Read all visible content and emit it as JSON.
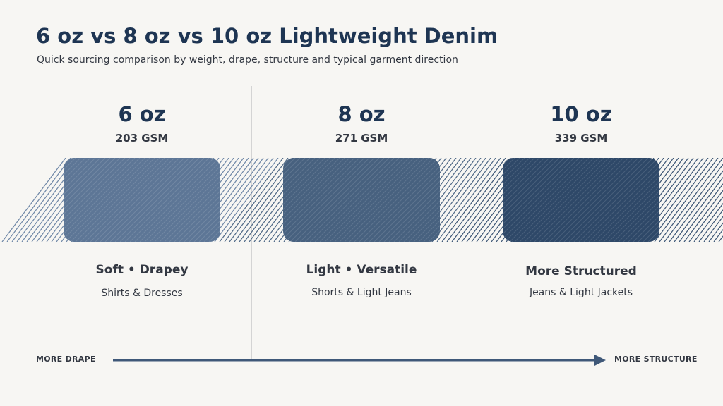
{
  "header": {
    "title": "6 oz vs 8 oz vs 10 oz Lightweight Denim",
    "subtitle": "Quick sourcing comparison by weight, drape, structure and typical garment direction"
  },
  "columns": [
    {
      "weight": "6 oz",
      "gsm": "203 GSM",
      "characteristics": "Soft • Drapey",
      "uses": "Shirts & Dresses",
      "swatch_color": "#5d7696",
      "hatch_color": "#6d86a6"
    },
    {
      "weight": "8 oz",
      "gsm": "271 GSM",
      "characteristics": "Light • Versatile",
      "uses": "Shorts & Light Jeans",
      "swatch_color": "#47617f",
      "hatch_color": "#4d6785"
    },
    {
      "weight": "10 oz",
      "gsm": "339 GSM",
      "characteristics": "More Structured",
      "uses": "Jeans & Light Jackets",
      "swatch_color": "#2e4868",
      "hatch_color": "#3a5474"
    }
  ],
  "scale": {
    "left_label": "MORE DRAPE",
    "right_label": "MORE STRUCTURE",
    "line_color": "#3f5878"
  }
}
